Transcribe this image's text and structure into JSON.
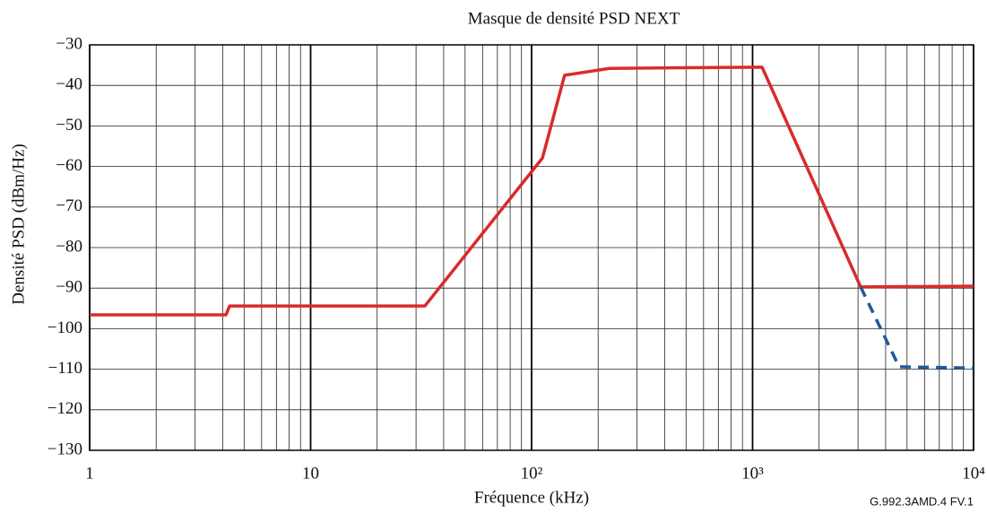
{
  "chart_data": {
    "type": "line",
    "title": "Masque de densité PSD NEXT",
    "x_label": "Fréquence (kHz)",
    "y_label": "Densité PSD (dBm/Hz)",
    "note": "G.992.3AMD.4  FV.1",
    "log_x": true,
    "grid": true,
    "xlim": [
      1,
      10000
    ],
    "ylim": [
      -130,
      -30
    ],
    "xticks": [
      1,
      10,
      {
        "value": 100,
        "label": "10²"
      },
      {
        "value": 1000,
        "label": "10³"
      },
      {
        "value": 10000,
        "label": "10⁴"
      }
    ],
    "x_minor_ticks": [
      2,
      3,
      4,
      5,
      6,
      7,
      8,
      9,
      20,
      30,
      40,
      50,
      60,
      70,
      80,
      90,
      200,
      300,
      400,
      500,
      600,
      700,
      800,
      900,
      2000,
      3000,
      4000,
      5000,
      6000,
      7000,
      8000,
      9000
    ],
    "yticks": [
      {
        "value": -130,
        "label": "−130"
      },
      {
        "value": -120,
        "label": "−120"
      },
      {
        "value": -110,
        "label": "−110"
      },
      {
        "value": -100,
        "label": "−100"
      },
      {
        "value": -90,
        "label": "−90"
      },
      {
        "value": -80,
        "label": "−80"
      },
      {
        "value": -70,
        "label": "−70"
      },
      {
        "value": -60,
        "label": "−60"
      },
      {
        "value": -50,
        "label": "−50"
      },
      {
        "value": -40,
        "label": "−40"
      },
      {
        "value": -30,
        "label": "−30"
      }
    ],
    "series": [
      {
        "color": "#d92b2b",
        "dash": false,
        "x": [
          1,
          4.14,
          4.3,
          32.9,
          112,
          141,
          225,
          1104,
          3083,
          10000
        ],
        "values": [
          -96.6,
          -96.6,
          -94.4,
          -94.4,
          -57.9,
          -37.5,
          -35.8,
          -35.5,
          -89.7,
          -89.5
        ]
      },
      {
        "color": "#1f5a99",
        "dash": true,
        "x": [
          3083,
          4603,
          10000
        ],
        "values": [
          -89.7,
          -109.4,
          -109.7
        ]
      }
    ]
  }
}
